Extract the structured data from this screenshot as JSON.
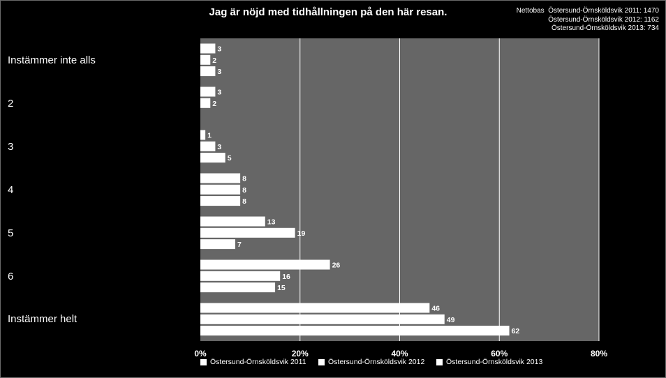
{
  "chart_data": {
    "type": "bar",
    "orientation": "horizontal",
    "title": "Jag är nöjd med tidhållningen på den här resan.",
    "nettobas": {
      "label": "Nettobas",
      "lines": [
        "Östersund-Örnsköldsvik 2011: 1470",
        "Östersund-Örnsköldsvik 2012: 1162",
        "Östersund-Örnsköldsvik 2013: 734"
      ]
    },
    "categories": [
      "Instämmer inte alls",
      "2",
      "3",
      "4",
      "5",
      "6",
      "Instämmer helt"
    ],
    "series": [
      {
        "name": "Östersund-Örnsköldsvik 2011",
        "values": [
          3,
          3,
          1,
          8,
          13,
          26,
          46
        ]
      },
      {
        "name": "Östersund-Örnsköldsvik 2012",
        "values": [
          2,
          2,
          3,
          8,
          19,
          16,
          49
        ]
      },
      {
        "name": "Östersund-Örnsköldsvik 2013",
        "values": [
          3,
          null,
          5,
          8,
          7,
          15,
          62
        ]
      }
    ],
    "xlim": [
      0,
      80
    ],
    "xticks": [
      "0%",
      "20%",
      "40%",
      "60%",
      "80%"
    ],
    "grid": true,
    "legend_position": "bottom",
    "colors": {
      "plot_background": "#666666",
      "bars": "#ffffff",
      "gridlines": "#ffffff",
      "page_background": "#000000"
    }
  }
}
